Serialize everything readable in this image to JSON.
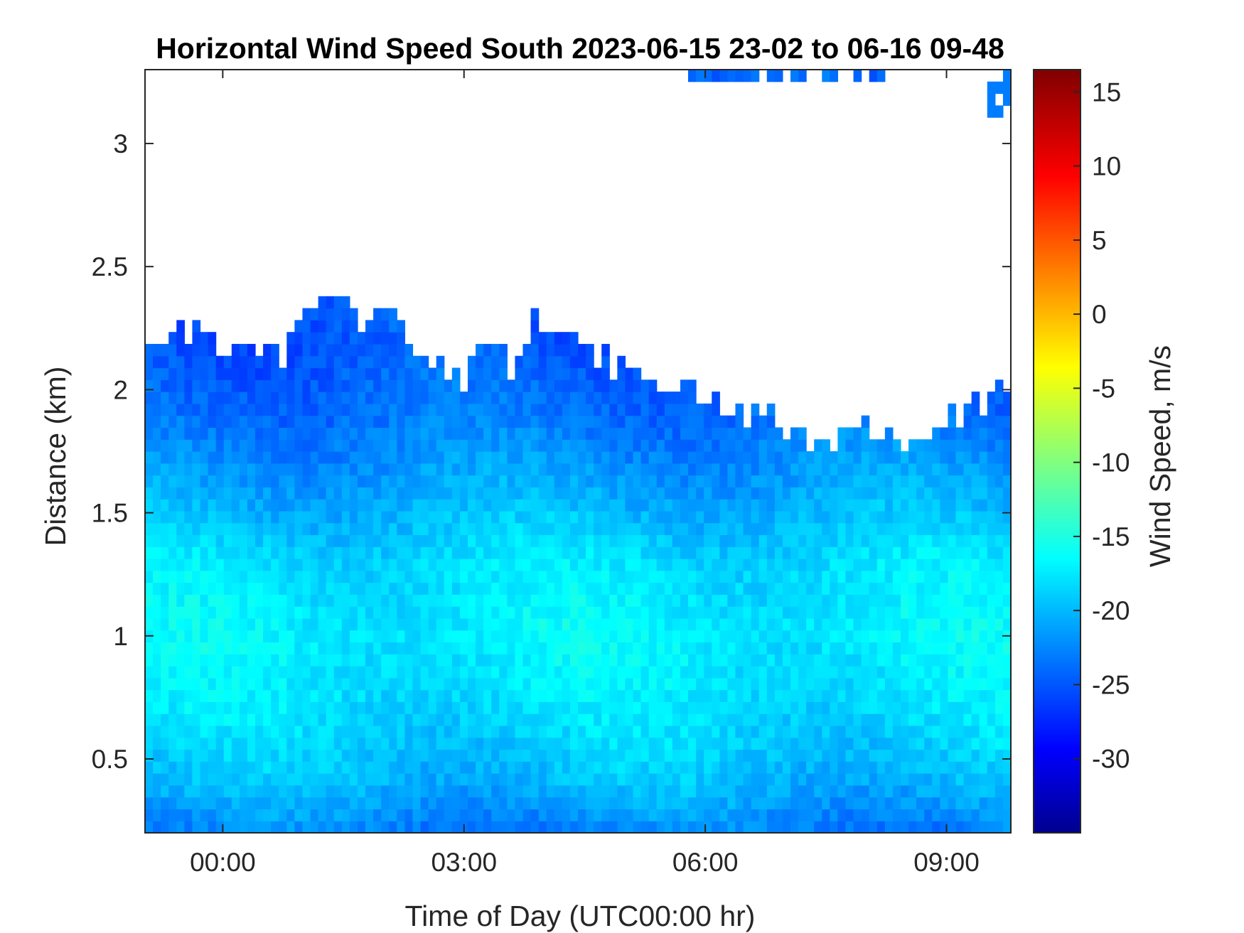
{
  "chart_data": {
    "type": "heatmap",
    "title": "Horizontal Wind Speed South 2023-06-15 23-02 to 06-16 09-48",
    "xlabel": "Time of Day (UTC00:00 hr)",
    "ylabel": "Distance (km)",
    "colorbar_label": "Wind Speed, m/s",
    "x_unit": "hours relative to 2023-06-16 00:00 UTC",
    "xlim": [
      -0.9667,
      9.8
    ],
    "ylim": [
      0.2,
      3.3
    ],
    "clim": [
      -35,
      16.5
    ],
    "x_ticks": [
      0,
      3,
      6,
      9
    ],
    "x_tick_labels": [
      "00:00",
      "03:00",
      "06:00",
      "09:00"
    ],
    "y_ticks": [
      0.5,
      1,
      1.5,
      2,
      2.5,
      3
    ],
    "y_tick_labels": [
      "0.5",
      "1",
      "1.5",
      "2",
      "2.5",
      "3"
    ],
    "colorbar_ticks": [
      15,
      10,
      5,
      0,
      -5,
      -10,
      -15,
      -20,
      -25,
      -30
    ],
    "colorbar_tick_labels": [
      "15",
      "10",
      "5",
      "0",
      "-5",
      "-10",
      "-15",
      "-20",
      "-25",
      "-30"
    ],
    "colormap": "jet",
    "colormap_stops": [
      "#00008f",
      "#0000ff",
      "#00ffff",
      "#ffff00",
      "#ff0000",
      "#800000"
    ],
    "missing_color": "#ffffff",
    "profile_top_km": {
      "x": [
        -0.97,
        -0.6,
        -0.2,
        0.3,
        0.8,
        1.0,
        1.4,
        1.7,
        2.0,
        2.2,
        2.5,
        2.8,
        3.0,
        3.3,
        3.6,
        3.9,
        4.3,
        4.7,
        5.0,
        5.3,
        5.6,
        5.9,
        6.2,
        6.5,
        6.9,
        7.2,
        7.4,
        7.6,
        8.0,
        8.5,
        9.0,
        9.4,
        9.8
      ],
      "y": [
        2.25,
        2.22,
        2.25,
        2.15,
        2.15,
        2.3,
        2.38,
        2.25,
        2.35,
        2.25,
        2.15,
        2.08,
        2.05,
        2.2,
        2.1,
        2.3,
        2.2,
        2.12,
        2.1,
        2.05,
        2.0,
        2.0,
        1.95,
        1.88,
        1.9,
        1.8,
        1.75,
        1.78,
        1.85,
        1.8,
        1.88,
        1.95,
        2.02
      ]
    },
    "profile_speed_m_s": {
      "distance_km": [
        0.2,
        0.4,
        0.7,
        1.0,
        1.3,
        1.6,
        1.9,
        2.2
      ],
      "speed": [
        -23,
        -20,
        -18,
        -17,
        -18,
        -21,
        -23.5,
        -25
      ]
    },
    "upper_layer_top_km": {
      "x": [
        5.5,
        6.0,
        6.5,
        7.0,
        7.5,
        8.0,
        8.3
      ],
      "y": [
        3.28,
        3.27,
        3.23,
        3.26,
        3.27,
        3.24,
        3.28
      ]
    }
  }
}
